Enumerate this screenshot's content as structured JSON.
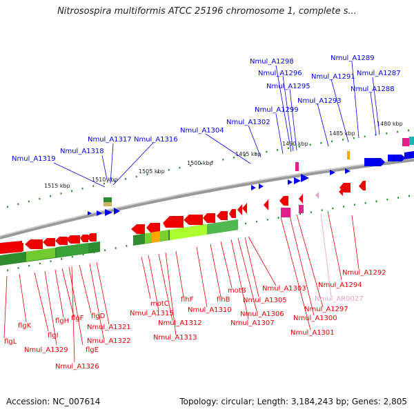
{
  "title": "Nitrosospira multiformis ATCC 25196 chromosome 1, complete s...",
  "footer": {
    "accession": "Accession: NC_007614",
    "summary": "Topology: circular; Length: 3,184,243 bp; Genes: 2,805"
  },
  "ticks": [
    "1515 kbp",
    "1510 kbp",
    "1505 kbp",
    "1500 kbp",
    "1495 kbp",
    "1490 kbp",
    "1485 kbp",
    "1480 kbp"
  ],
  "top_labels": [
    "Nmul_A1319",
    "Nmul_A1318",
    "Nmul_A1317",
    "Nmul_A1316",
    "Nmul_A1304",
    "Nmul_A1302",
    "Nmul_A1299",
    "Nmul_A1298",
    "Nmul_A1296",
    "Nmul_A1295",
    "Nmul_A1293",
    "Nmul_A1291",
    "Nmul_A1289",
    "Nmul_A1287",
    "Nmul_A1288"
  ],
  "bottom_labels": [
    "flgL",
    "flgK",
    "flgI",
    "Nmul_A1329",
    "flgH",
    "flgF",
    "flgE",
    "Nmul_A1326",
    "flgD",
    "Nmul_A1322",
    "Nmul_A1321",
    "motC",
    "Nmul_A1315",
    "Nmul_A1312",
    "Nmul_A1313",
    "flhF",
    "Nmul_A1310",
    "flhB",
    "motB",
    "Nmul_A1307",
    "Nmul_A1306",
    "Nmul_A1305",
    "Nmul_A1303",
    "Nmul_A1301",
    "Nmul_A1300",
    "Nmul_A1297",
    "Nmul_AR0027",
    "Nmul_A1294",
    "Nmul_A1292"
  ],
  "colors": {
    "forward": "#0000ee",
    "reverse": "#ee0000",
    "rna": "#e0208a",
    "rna_pale": "#f0a0c8",
    "tick": "#2a8a2a",
    "genome": "#888888",
    "gc_dark": "#2e8b2e",
    "gc_light": "#adff2f",
    "gc_orange": "#ffa500"
  }
}
